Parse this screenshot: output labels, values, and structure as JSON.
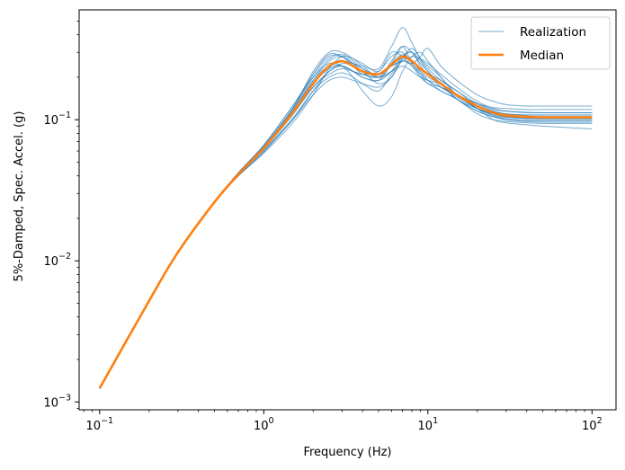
{
  "chart_data": {
    "type": "line",
    "xlabel": "Frequency (Hz)",
    "ylabel": "5%-Damped, Spec. Accel. (g)",
    "xscale": "log",
    "yscale": "log",
    "xlim": [
      0.075,
      140
    ],
    "ylim": [
      0.00088,
      0.6
    ],
    "x_ticks": [
      {
        "value": 0.1,
        "base": "10",
        "exp": "−1"
      },
      {
        "value": 1,
        "base": "10",
        "exp": "0"
      },
      {
        "value": 10,
        "base": "10",
        "exp": "1"
      },
      {
        "value": 100,
        "base": "10",
        "exp": "2"
      }
    ],
    "y_ticks": [
      {
        "value": 0.001,
        "base": "10",
        "exp": "−3"
      },
      {
        "value": 0.01,
        "base": "10",
        "exp": "−2"
      },
      {
        "value": 0.1,
        "base": "10",
        "exp": "−1"
      }
    ],
    "grid": false,
    "legend_position": "top-right",
    "colors": {
      "realization": "#1f77b4",
      "median": "#ff7f0e"
    },
    "x": [
      0.1,
      0.2,
      0.3,
      0.5,
      0.7,
      1.0,
      1.5,
      2.0,
      2.5,
      3.0,
      3.5,
      4.0,
      5.0,
      6.0,
      7.0,
      8.0,
      9.0,
      10,
      12,
      15,
      20,
      25,
      30,
      40,
      50,
      70,
      100
    ],
    "series": [
      {
        "name": "Realization",
        "role": "realization",
        "values": [
          0.00125,
          0.0052,
          0.0115,
          0.026,
          0.041,
          0.063,
          0.12,
          0.21,
          0.29,
          0.28,
          0.25,
          0.23,
          0.2,
          0.26,
          0.33,
          0.25,
          0.22,
          0.2,
          0.18,
          0.15,
          0.13,
          0.118,
          0.115,
          0.113,
          0.112,
          0.112,
          0.112
        ]
      },
      {
        "name": "",
        "role": "realization",
        "values": [
          0.00125,
          0.0052,
          0.0115,
          0.026,
          0.04,
          0.058,
          0.095,
          0.15,
          0.23,
          0.28,
          0.27,
          0.25,
          0.22,
          0.3,
          0.28,
          0.24,
          0.21,
          0.19,
          0.17,
          0.145,
          0.12,
          0.108,
          0.104,
          0.102,
          0.102,
          0.102,
          0.102
        ]
      },
      {
        "name": "",
        "role": "realization",
        "values": [
          0.00125,
          0.0052,
          0.0115,
          0.026,
          0.042,
          0.066,
          0.125,
          0.2,
          0.25,
          0.24,
          0.2,
          0.16,
          0.125,
          0.145,
          0.22,
          0.28,
          0.3,
          0.26,
          0.2,
          0.15,
          0.12,
          0.1,
          0.095,
          0.092,
          0.09,
          0.088,
          0.086
        ]
      },
      {
        "name": "",
        "role": "realization",
        "values": [
          0.00125,
          0.0052,
          0.0115,
          0.026,
          0.041,
          0.063,
          0.11,
          0.18,
          0.24,
          0.26,
          0.25,
          0.24,
          0.23,
          0.33,
          0.45,
          0.35,
          0.27,
          0.23,
          0.19,
          0.16,
          0.13,
          0.115,
          0.11,
          0.108,
          0.108,
          0.108,
          0.108
        ]
      },
      {
        "name": "",
        "role": "realization",
        "values": [
          0.00125,
          0.0052,
          0.0115,
          0.026,
          0.042,
          0.065,
          0.12,
          0.22,
          0.3,
          0.3,
          0.27,
          0.24,
          0.2,
          0.22,
          0.28,
          0.3,
          0.24,
          0.21,
          0.18,
          0.14,
          0.12,
          0.11,
          0.105,
          0.103,
          0.102,
          0.102,
          0.102
        ]
      },
      {
        "name": "",
        "role": "realization",
        "values": [
          0.00125,
          0.0052,
          0.0115,
          0.026,
          0.04,
          0.06,
          0.1,
          0.16,
          0.22,
          0.25,
          0.24,
          0.22,
          0.18,
          0.2,
          0.27,
          0.32,
          0.27,
          0.24,
          0.2,
          0.15,
          0.125,
          0.112,
          0.108,
          0.105,
          0.105,
          0.105,
          0.105
        ]
      },
      {
        "name": "",
        "role": "realization",
        "values": [
          0.00125,
          0.0052,
          0.0115,
          0.026,
          0.041,
          0.062,
          0.115,
          0.19,
          0.26,
          0.28,
          0.25,
          0.22,
          0.21,
          0.24,
          0.26,
          0.25,
          0.28,
          0.32,
          0.24,
          0.19,
          0.15,
          0.135,
          0.128,
          0.125,
          0.125,
          0.125,
          0.125
        ]
      },
      {
        "name": "",
        "role": "realization",
        "values": [
          0.00125,
          0.0052,
          0.0115,
          0.026,
          0.041,
          0.063,
          0.112,
          0.17,
          0.22,
          0.24,
          0.22,
          0.2,
          0.19,
          0.22,
          0.28,
          0.3,
          0.26,
          0.22,
          0.18,
          0.14,
          0.115,
          0.105,
          0.1,
          0.097,
          0.096,
          0.096,
          0.096
        ]
      },
      {
        "name": "",
        "role": "realization",
        "values": [
          0.00125,
          0.0052,
          0.0115,
          0.026,
          0.042,
          0.064,
          0.115,
          0.19,
          0.24,
          0.24,
          0.22,
          0.2,
          0.19,
          0.25,
          0.33,
          0.3,
          0.25,
          0.22,
          0.17,
          0.15,
          0.13,
          0.122,
          0.12,
          0.118,
          0.118,
          0.118,
          0.118
        ]
      },
      {
        "name": "",
        "role": "realization",
        "values": [
          0.00125,
          0.0052,
          0.0115,
          0.026,
          0.041,
          0.061,
          0.102,
          0.16,
          0.2,
          0.215,
          0.2,
          0.18,
          0.16,
          0.21,
          0.26,
          0.24,
          0.2,
          0.18,
          0.16,
          0.14,
          0.115,
          0.105,
          0.1,
          0.098,
          0.098,
          0.098,
          0.098
        ]
      },
      {
        "name": "",
        "role": "realization",
        "values": [
          0.00125,
          0.0052,
          0.0115,
          0.026,
          0.041,
          0.064,
          0.118,
          0.2,
          0.27,
          0.29,
          0.26,
          0.23,
          0.21,
          0.25,
          0.29,
          0.26,
          0.23,
          0.21,
          0.19,
          0.16,
          0.125,
          0.115,
          0.11,
          0.108,
          0.108,
          0.108,
          0.108
        ]
      },
      {
        "name": "",
        "role": "realization",
        "values": [
          0.00125,
          0.0052,
          0.0115,
          0.026,
          0.04,
          0.059,
          0.1,
          0.15,
          0.19,
          0.2,
          0.19,
          0.18,
          0.17,
          0.2,
          0.27,
          0.26,
          0.22,
          0.19,
          0.16,
          0.14,
          0.11,
          0.1,
          0.097,
          0.095,
          0.094,
          0.094,
          0.094
        ]
      },
      {
        "name": "",
        "role": "realization",
        "values": [
          0.00125,
          0.0052,
          0.0115,
          0.026,
          0.042,
          0.066,
          0.125,
          0.21,
          0.28,
          0.28,
          0.24,
          0.21,
          0.2,
          0.24,
          0.26,
          0.28,
          0.27,
          0.25,
          0.21,
          0.17,
          0.135,
          0.12,
          0.115,
          0.112,
          0.112,
          0.112,
          0.112
        ]
      },
      {
        "name": "",
        "role": "realization",
        "values": [
          0.00125,
          0.0052,
          0.0115,
          0.026,
          0.041,
          0.062,
          0.108,
          0.17,
          0.21,
          0.23,
          0.22,
          0.21,
          0.2,
          0.22,
          0.24,
          0.22,
          0.2,
          0.19,
          0.18,
          0.15,
          0.12,
          0.107,
          0.102,
          0.1,
          0.1,
          0.1,
          0.1
        ]
      },
      {
        "name": "",
        "role": "realization",
        "values": [
          0.00125,
          0.0052,
          0.0115,
          0.026,
          0.041,
          0.063,
          0.113,
          0.18,
          0.23,
          0.24,
          0.22,
          0.21,
          0.22,
          0.28,
          0.3,
          0.25,
          0.21,
          0.18,
          0.17,
          0.15,
          0.12,
          0.11,
          0.105,
          0.103,
          0.103,
          0.103,
          0.103
        ]
      },
      {
        "name": "Median",
        "role": "median",
        "values": [
          0.00125,
          0.0052,
          0.0115,
          0.026,
          0.041,
          0.063,
          0.112,
          0.18,
          0.24,
          0.26,
          0.24,
          0.22,
          0.21,
          0.245,
          0.28,
          0.26,
          0.23,
          0.21,
          0.18,
          0.15,
          0.125,
          0.112,
          0.107,
          0.105,
          0.104,
          0.104,
          0.104
        ]
      }
    ]
  }
}
